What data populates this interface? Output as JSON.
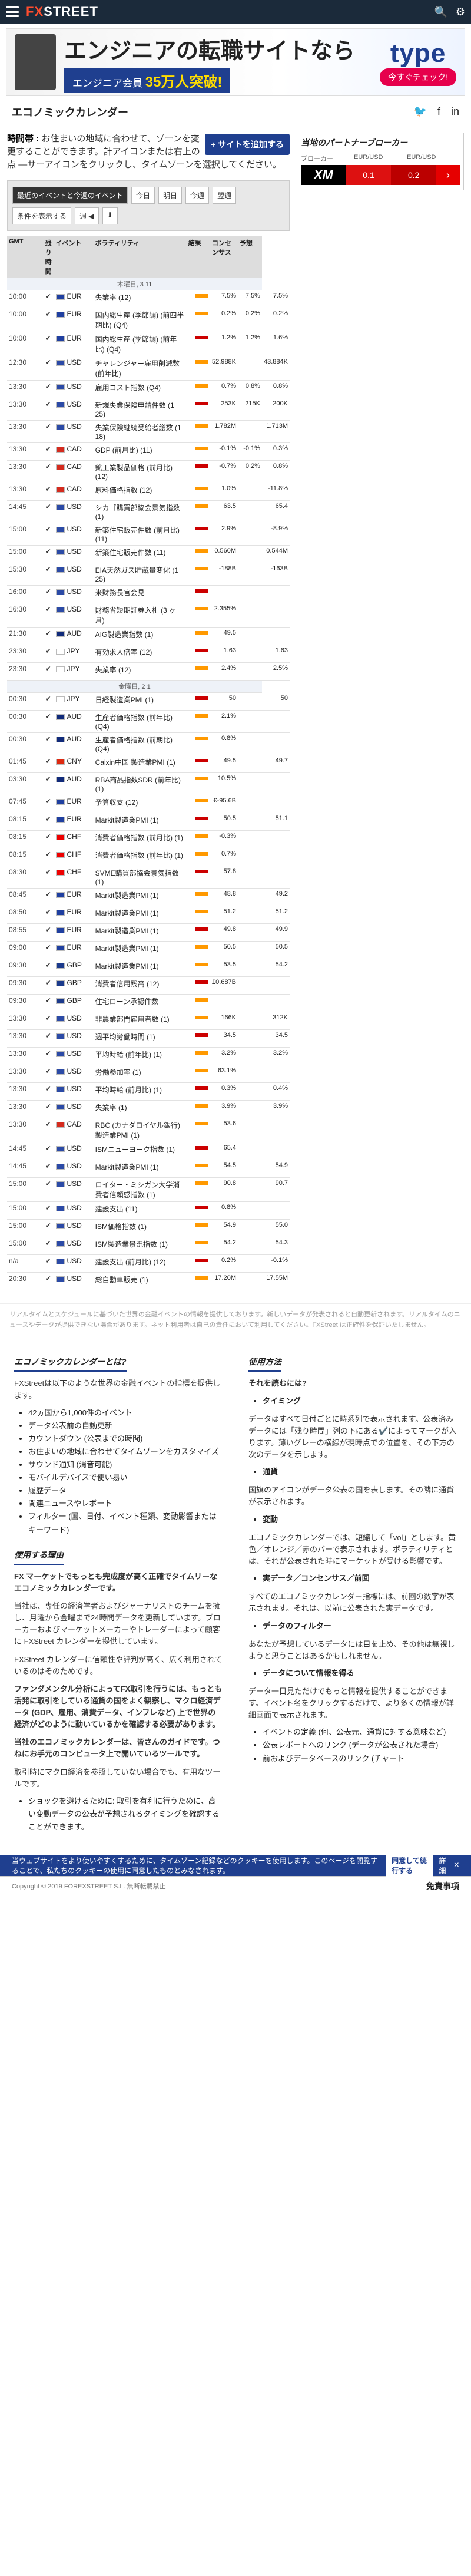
{
  "site": {
    "name": "FXSTREET",
    "logo_fx": "FX",
    "logo_street": "STREET"
  },
  "banner": {
    "headline": "エンジニアの転職サイトなら",
    "sub_prefix": "エンジニア会員",
    "sub_count": "35万人突破!",
    "brand": "type",
    "cta": "今すぐチェック!"
  },
  "page_title": "エコノミックカレンダー",
  "intro": {
    "lead": "時間帯 :",
    "body": "お住まいの地域に合わせて、ゾーンを変更することができます。計アイコンまたは右上の点",
    "tail": "—サーアイコンをクリックし、タイムゾーンを選択してください。",
    "add_button": "+ サイトを追加する"
  },
  "toolbar": {
    "items": [
      "最近のイベントと今週のイベント",
      "今日",
      "明日",
      "今週",
      "翌週",
      "条件を表示する",
      "週 ◀",
      "⬇"
    ]
  },
  "table": {
    "headers": {
      "time": "GMT",
      "left": "残り時間",
      "event": "イベント",
      "impact": "ボラティリティ",
      "actual": "結果",
      "consensus": "コンセンサス",
      "previous": "予想"
    },
    "rows": [
      {
        "day": "木曜日, 3 11"
      },
      {
        "time": "10:00",
        "cur": "EUR",
        "event": "失業率 (12)",
        "a": "7.5%",
        "c": "7.5%",
        "p": "7.5%"
      },
      {
        "time": "10:00",
        "cur": "EUR",
        "event": "国内総生産 (季節調) (前四半期比) (Q4)",
        "a": "0.2%",
        "c": "0.2%",
        "p": "0.2%"
      },
      {
        "time": "10:00",
        "cur": "EUR",
        "event": "国内総生産 (季節調) (前年比) (Q4)",
        "a": "1.2%",
        "c": "1.2%",
        "p": "1.6%"
      },
      {
        "time": "12:30",
        "cur": "USD",
        "event": "チャレンジャー雇用削減数 (前年比)",
        "a": "52.988K",
        "c": "",
        "p": "43.884K"
      },
      {
        "time": "13:30",
        "cur": "USD",
        "event": "雇用コスト指数 (Q4)",
        "a": "0.7%",
        "c": "0.8%",
        "p": "0.8%"
      },
      {
        "time": "13:30",
        "cur": "USD",
        "event": "新規失業保険申請件数 (1 25)",
        "a": "253K",
        "c": "215K",
        "p": "200K"
      },
      {
        "time": "13:30",
        "cur": "USD",
        "event": "失業保険継続受給者総数 (1 18)",
        "a": "1.782M",
        "c": "",
        "p": "1.713M"
      },
      {
        "time": "13:30",
        "cur": "CAD",
        "event": "GDP (前月比) (11)",
        "a": "-0.1%",
        "c": "-0.1%",
        "p": "0.3%"
      },
      {
        "time": "13:30",
        "cur": "CAD",
        "event": "鉱工業製品価格 (前月比) (12)",
        "a": "-0.7%",
        "c": "0.2%",
        "p": "0.8%"
      },
      {
        "time": "13:30",
        "cur": "CAD",
        "event": "原料価格指数 (12)",
        "a": "1.0%",
        "c": "",
        "p": "-11.8%"
      },
      {
        "time": "14:45",
        "cur": "USD",
        "event": "シカゴ購買部協会景気指数 (1)",
        "a": "63.5",
        "c": "",
        "p": "65.4"
      },
      {
        "time": "15:00",
        "cur": "USD",
        "event": "新築住宅販売件数 (前月比) (11)",
        "a": "2.9%",
        "c": "",
        "p": "-8.9%"
      },
      {
        "time": "15:00",
        "cur": "USD",
        "event": "新築住宅販売件数 (11)",
        "a": "0.560M",
        "c": "",
        "p": "0.544M"
      },
      {
        "time": "15:30",
        "cur": "USD",
        "event": "EIA天然ガス貯蔵量変化 (1 25)",
        "a": "-188B",
        "c": "",
        "p": "-163B"
      },
      {
        "time": "16:00",
        "cur": "USD",
        "event": "米財務長官会見",
        "a": "",
        "c": "",
        "p": ""
      },
      {
        "time": "16:30",
        "cur": "USD",
        "event": "財務省短期証券入札 (3 ヶ月)",
        "a": "2.355%",
        "c": "",
        "p": ""
      },
      {
        "time": "21:30",
        "cur": "AUD",
        "event": "AIG製造業指数 (1)",
        "a": "49.5",
        "c": "",
        "p": ""
      },
      {
        "time": "23:30",
        "cur": "JPY",
        "event": "有効求人倍率 (12)",
        "a": "1.63",
        "c": "",
        "p": "1.63"
      },
      {
        "time": "23:30",
        "cur": "JPY",
        "event": "失業率 (12)",
        "a": "2.4%",
        "c": "",
        "p": "2.5%"
      },
      {
        "day": "金曜日, 2 1"
      },
      {
        "time": "00:30",
        "cur": "JPY",
        "event": "日経製造業PMI (1)",
        "a": "50",
        "c": "",
        "p": "50"
      },
      {
        "time": "00:30",
        "cur": "AUD",
        "event": "生産者価格指数 (前年比) (Q4)",
        "a": "2.1%",
        "c": "",
        "p": ""
      },
      {
        "time": "00:30",
        "cur": "AUD",
        "event": "生産者価格指数 (前期比) (Q4)",
        "a": "0.8%",
        "c": "",
        "p": ""
      },
      {
        "time": "01:45",
        "cur": "CNY",
        "event": "Caixin中国 製造業PMI (1)",
        "a": "49.5",
        "c": "",
        "p": "49.7"
      },
      {
        "time": "03:30",
        "cur": "AUD",
        "event": "RBA商品指数SDR (前年比) (1)",
        "a": "10.5%",
        "c": "",
        "p": ""
      },
      {
        "time": "07:45",
        "cur": "EUR",
        "event": "予算収支 (12)",
        "a": "€-95.6B",
        "c": "",
        "p": ""
      },
      {
        "time": "08:15",
        "cur": "EUR",
        "event": "Markit製造業PMI (1)",
        "a": "50.5",
        "c": "",
        "p": "51.1"
      },
      {
        "time": "08:15",
        "cur": "CHF",
        "event": "消費者価格指数 (前月比) (1)",
        "a": "-0.3%",
        "c": "",
        "p": ""
      },
      {
        "time": "08:15",
        "cur": "CHF",
        "event": "消費者価格指数 (前年比) (1)",
        "a": "0.7%",
        "c": "",
        "p": ""
      },
      {
        "time": "08:30",
        "cur": "CHF",
        "event": "SVME購買部協会景気指数 (1)",
        "a": "57.8",
        "c": "",
        "p": ""
      },
      {
        "time": "08:45",
        "cur": "EUR",
        "event": "Markit製造業PMI (1)",
        "a": "48.8",
        "c": "",
        "p": "49.2"
      },
      {
        "time": "08:50",
        "cur": "EUR",
        "event": "Markit製造業PMI (1)",
        "a": "51.2",
        "c": "",
        "p": "51.2"
      },
      {
        "time": "08:55",
        "cur": "EUR",
        "event": "Markit製造業PMI (1)",
        "a": "49.8",
        "c": "",
        "p": "49.9"
      },
      {
        "time": "09:00",
        "cur": "EUR",
        "event": "Markit製造業PMI (1)",
        "a": "50.5",
        "c": "",
        "p": "50.5"
      },
      {
        "time": "09:30",
        "cur": "GBP",
        "event": "Markit製造業PMI (1)",
        "a": "53.5",
        "c": "",
        "p": "54.2"
      },
      {
        "time": "09:30",
        "cur": "GBP",
        "event": "消費者信用残高 (12)",
        "a": "£0.687B",
        "c": "",
        "p": ""
      },
      {
        "time": "09:30",
        "cur": "GBP",
        "event": "住宅ローン承認件数",
        "a": "",
        "c": "",
        "p": ""
      },
      {
        "time": "13:30",
        "cur": "USD",
        "event": "非農業部門雇用者数 (1)",
        "a": "166K",
        "c": "",
        "p": "312K"
      },
      {
        "time": "13:30",
        "cur": "USD",
        "event": "週平均労働時間 (1)",
        "a": "34.5",
        "c": "",
        "p": "34.5"
      },
      {
        "time": "13:30",
        "cur": "USD",
        "event": "平均時給 (前年比) (1)",
        "a": "3.2%",
        "c": "",
        "p": "3.2%"
      },
      {
        "time": "13:30",
        "cur": "USD",
        "event": "労働参加率 (1)",
        "a": "63.1%",
        "c": "",
        "p": ""
      },
      {
        "time": "13:30",
        "cur": "USD",
        "event": "平均時給 (前月比) (1)",
        "a": "0.3%",
        "c": "",
        "p": "0.4%"
      },
      {
        "time": "13:30",
        "cur": "USD",
        "event": "失業率 (1)",
        "a": "3.9%",
        "c": "",
        "p": "3.9%"
      },
      {
        "time": "13:30",
        "cur": "CAD",
        "event": "RBC (カナダロイヤル銀行) 製造業PMI (1)",
        "a": "53.6",
        "c": "",
        "p": ""
      },
      {
        "time": "14:45",
        "cur": "USD",
        "event": "ISMニューヨーク指数 (1)",
        "a": "65.4",
        "c": "",
        "p": ""
      },
      {
        "time": "14:45",
        "cur": "USD",
        "event": "Markit製造業PMI (1)",
        "a": "54.5",
        "c": "",
        "p": "54.9"
      },
      {
        "time": "15:00",
        "cur": "USD",
        "event": "ロイター・ミシガン大学消費者信頼感指数 (1)",
        "a": "90.8",
        "c": "",
        "p": "90.7"
      },
      {
        "time": "15:00",
        "cur": "USD",
        "event": "建設支出 (11)",
        "a": "0.8%",
        "c": "",
        "p": ""
      },
      {
        "time": "15:00",
        "cur": "USD",
        "event": "ISM価格指数 (1)",
        "a": "54.9",
        "c": "",
        "p": "55.0"
      },
      {
        "time": "15:00",
        "cur": "USD",
        "event": "ISM製造業景況指数 (1)",
        "a": "54.2",
        "c": "",
        "p": "54.3"
      },
      {
        "time": "n/a",
        "cur": "USD",
        "event": "建設支出 (前月比) (12)",
        "a": "0.2%",
        "c": "",
        "p": "-0.1%"
      },
      {
        "time": "20:30",
        "cur": "USD",
        "event": "総自動車販売 (1)",
        "a": "17.20M",
        "c": "",
        "p": "17.55M"
      }
    ]
  },
  "broker": {
    "title": "当地のパートナーブローカー",
    "cols": [
      "ブローカー",
      "EUR/USD",
      "EUR/USD"
    ],
    "logo": "XM",
    "bid": "0.1",
    "ask": "0.2",
    "go": "›"
  },
  "disclaimer": "リアルタイムとスケジュールに基づいた世界の金融イベントの情報を提供しております。新しいデータが発表されると自動更新されます。リアルタイムのニュースやデータが提供できない場合があります。ネット利用者は自己の責任において利用してください。FXStreet は正確性を保証いたしません。",
  "about": {
    "title": "エコノミックカレンダーとは?",
    "p1": "FXStreetは以下のような世界の金融イベントの指標を提供します。",
    "bullets": [
      "42ヵ国から1,000件のイベント",
      "データ公表前の自動更新",
      "カウントダウン (公表までの時間)",
      "お住まいの地域に合わせてタイムゾーンをカスタマイズ",
      "サウンド通知 (消音可能)",
      "モバイルデバイスで使い易い",
      "履歴データ",
      "関連ニュースやレポート",
      "フィルター (国、日付、イベント種類、変動影響またはキーワード)"
    ]
  },
  "why": {
    "title": "使用する理由",
    "p1": "FX マーケットでもっとも完成度が高く正確でタイムリーなエコノミックカレンダーです。",
    "p2": "当社は、専任の経済学者およびジャーナリストのチームを擁し、月曜から金曜まで24時間データを更新しています。ブローカーおよびマーケットメーカーやトレーダーによって顧客に FXStreet カレンダーを提供しています。",
    "p3": "FXStreet カレンダーに信頼性や評判が高く、広く利用されているのはそのためです。",
    "p4": "ファンダメンタル分析によってFX取引を行うには、もっとも活発に取引をしている通貨の国をよく観察し、マクロ経済データ (GDP、雇用、消費データ、インフレなど) 上で世界の経済がどのように動いているかを確認する必要があります。",
    "p5": "当社のエコノミックカレンダーは、皆さんのガイドです。つねにお手元のコンピュータ上で開いているツールです。",
    "p6": "取引時にマクロ経済を参照していない場合でも、有用なツールです。",
    "b1": "ショックを避けるために: 取引を有利に行うために、高い変動データの公表が予想されるタイミングを確認することができます。"
  },
  "howto": {
    "title": "使用方法",
    "q": "それを読むには?",
    "h_timing": "タイミング",
    "t_timing": "データはすべて日付ごとに時系列で表示されます。公表済みデータには「残り時間」列の下にある✔️によってマークが入ります。薄いグレーの横線が現時点での位置を、その下方の次のデータを示します。",
    "h_currency": "通貨",
    "t_currency": "国旗のアイコンがデータ公表の国を表します。その隣に通貨が表示されます。",
    "h_vol": "変動",
    "t_vol": "エコノミックカレンダーでは、短縮して「vol」とします。黄色／オレンジ／赤のバーで表示されます。ボラティリティとは、それが公表された時にマーケットが受ける影響です。",
    "h_cons": "実データ／コンセンサス／前回",
    "t_cons": "すべてのエコノミックカレンダー指標には、前回の数字が表示されます。それは、以前に公表された実データです。",
    "h_filter": "データのフィルター",
    "t_filter": "あなたが予想しているデータには目を止め、その他は無視しようと思うことはあるかもしれません。",
    "h_more": "データについて情報を得る",
    "t_more": "データ一目見ただけでもっと情報を提供することができます。イベント名をクリックするだけで、より多くの情報が詳細画面で表示されます。",
    "b_more": [
      "イベントの定義 (何、公表元、通貨に対する意味など)",
      "公表レポートへのリンク (データが公表された場合)",
      "前およびデータベースのリンク (チャート"
    ]
  },
  "cookie": {
    "text": "当ウェブサイトをより使いやすくするために、タイムゾーン記録などのクッキーを使用します。このページを閲覧することで、私たちのクッキーの使用に同意したものとみなされます。",
    "ok": "同意して続行する",
    "more": "詳細"
  },
  "footer": {
    "copy": "Copyright © 2019 FOREXSTREET S.L. 無断転載禁止",
    "disclaimer": "免責事項"
  }
}
